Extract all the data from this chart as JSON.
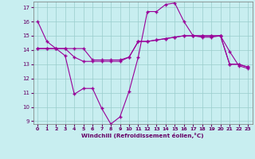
{
  "xlabel": "Windchill (Refroidissement éolien,°C)",
  "background_color": "#c8eef0",
  "line_color": "#990099",
  "grid_color": "#99cccc",
  "xlim": [
    -0.5,
    23.5
  ],
  "ylim": [
    8.8,
    17.4
  ],
  "yticks": [
    9,
    10,
    11,
    12,
    13,
    14,
    15,
    16,
    17
  ],
  "xticks": [
    0,
    1,
    2,
    3,
    4,
    5,
    6,
    7,
    8,
    9,
    10,
    11,
    12,
    13,
    14,
    15,
    16,
    17,
    18,
    19,
    20,
    21,
    22,
    23
  ],
  "series1_x": [
    0,
    1,
    2,
    3,
    4,
    5,
    6,
    7,
    8,
    9,
    10,
    11,
    12,
    13,
    14,
    15,
    16,
    17,
    18,
    19,
    20,
    21,
    22,
    23
  ],
  "series1_y": [
    16.0,
    14.6,
    14.1,
    13.6,
    10.9,
    11.3,
    11.3,
    9.9,
    8.8,
    9.3,
    11.1,
    13.5,
    16.7,
    16.7,
    17.2,
    17.3,
    16.0,
    15.0,
    14.9,
    14.9,
    15.0,
    13.9,
    12.9,
    12.7
  ],
  "series2_x": [
    0,
    1,
    2,
    3,
    4,
    5,
    6,
    7,
    8,
    9,
    10,
    11,
    12,
    13,
    14,
    15,
    16,
    17,
    18,
    19,
    20,
    21,
    22,
    23
  ],
  "series2_y": [
    14.1,
    14.1,
    14.1,
    14.1,
    14.1,
    14.1,
    13.3,
    13.3,
    13.3,
    13.3,
    13.5,
    14.6,
    14.6,
    14.7,
    14.8,
    14.9,
    15.0,
    15.0,
    15.0,
    15.0,
    15.0,
    13.0,
    13.0,
    12.8
  ],
  "series3_x": [
    0,
    1,
    2,
    3,
    4,
    5,
    6,
    7,
    8,
    9,
    10,
    11,
    12,
    13,
    14,
    15,
    16,
    17,
    18,
    19,
    20,
    21,
    22,
    23
  ],
  "series3_y": [
    14.1,
    14.1,
    14.1,
    14.1,
    13.5,
    13.2,
    13.2,
    13.2,
    13.2,
    13.2,
    13.5,
    14.6,
    14.6,
    14.7,
    14.8,
    14.9,
    15.0,
    15.0,
    15.0,
    15.0,
    15.0,
    13.0,
    13.0,
    12.8
  ]
}
